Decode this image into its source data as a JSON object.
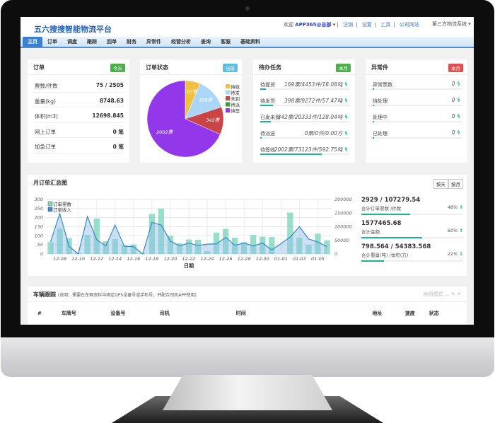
{
  "header": {
    "title": "五六搜搜智能物流平台",
    "welcome": "欢迎",
    "user": "APP365@总部",
    "links": [
      "注销",
      "设置",
      "工具",
      "公司网站"
    ],
    "system": "第三方物流系统"
  },
  "nav": [
    "主页",
    "订单",
    "调度",
    "跟踪",
    "回单",
    "财务",
    "异常件",
    "经营分析",
    "查询",
    "客服",
    "基础资料"
  ],
  "orders": {
    "title": "订单",
    "badge": "今天",
    "rows": [
      {
        "k": "票数/件数",
        "v": "75 / 2505"
      },
      {
        "k": "重量(kg)",
        "v": "8748.63"
      },
      {
        "k": "体积(m3)",
        "v": "12698.845"
      },
      {
        "k": "网上订单",
        "v": "0 笔"
      },
      {
        "k": "加急订单",
        "v": "0 笔"
      }
    ]
  },
  "status": {
    "title": "订单状态",
    "badge": "当前",
    "slices": [
      {
        "label": "待收",
        "value": 187,
        "text": "187票",
        "color": "#f0c040"
      },
      {
        "label": "待发",
        "value": 398,
        "text": "398票",
        "color": "#acd6f8"
      },
      {
        "label": "未到",
        "value": 342,
        "text": "342票",
        "color": "#c94545"
      },
      {
        "label": "待派",
        "value": 0,
        "text": "",
        "color": "#33a033"
      },
      {
        "label": "待签",
        "value": 2002,
        "text": "2002票",
        "color": "#9238ea"
      }
    ]
  },
  "tasks": {
    "title": "待办任务",
    "badge": "本月",
    "rows": [
      {
        "k": "待提货",
        "v": "169票/4453件/18.08吨",
        "pct": 6
      },
      {
        "k": "待发货",
        "v": "398票/9272件/57.47吨",
        "pct": 14
      },
      {
        "k": "已发未到",
        "v": "342票/20333件/128.04吨",
        "pct": 12
      },
      {
        "k": "待派送",
        "v": "0票/0件/0.00方",
        "pct": 0
      },
      {
        "k": "待签收",
        "v": "2002票/73123件/592.75吨",
        "pct": 69
      }
    ]
  },
  "exceptions": {
    "title": "异常件",
    "badge": "本月",
    "rows": [
      {
        "k": "异常票数",
        "v": "0",
        "pct": 0
      },
      {
        "k": "待处理",
        "v": "0",
        "pct": 0
      },
      {
        "k": "处理中",
        "v": "0",
        "pct": 0
      },
      {
        "k": "已处理",
        "v": "0",
        "pct": 0
      }
    ]
  },
  "monthly": {
    "title": "月订单汇总图",
    "btn_day": "按天",
    "btn_month": "按月",
    "stats": [
      {
        "n": "2929 / 107279.54",
        "l": "合计订单票数 /件数",
        "p": "48%",
        "pct": 48
      },
      {
        "n": "1577465.68",
        "l": "合计金额",
        "p": "60%",
        "pct": 60
      },
      {
        "n": "798.564 / 54383.568",
        "l": "合计重量(吨) /体积(方)",
        "p": "22%",
        "pct": 22
      }
    ]
  },
  "chart_data": {
    "type": "bar+line",
    "xlabel": "日期",
    "x": [
      "12-07",
      "12-08",
      "12-09",
      "12-10",
      "12-11",
      "12-12",
      "12-13",
      "12-14",
      "12-15",
      "12-16",
      "12-17",
      "12-18",
      "12-19",
      "12-20",
      "12-21",
      "12-22",
      "12-23",
      "12-24",
      "12-25",
      "12-26",
      "12-27",
      "12-28",
      "12-29",
      "12-30",
      "12-31",
      "01-01",
      "01-02",
      "01-03",
      "01-04",
      "01-05",
      "01-06"
    ],
    "tick_labels": [
      "12-08",
      "12-10",
      "12-12",
      "12-14",
      "12-16",
      "12-18",
      "12-20",
      "12-22",
      "12-24",
      "12-26",
      "12-28",
      "12-30",
      "01-01",
      "01-03",
      "01-05"
    ],
    "series": [
      {
        "name": "订单票数",
        "type": "bar",
        "axis": "left",
        "color": "#7fd6bd",
        "values": [
          65,
          140,
          88,
          5,
          105,
          195,
          70,
          82,
          48,
          52,
          3,
          220,
          250,
          100,
          58,
          80,
          78,
          15,
          118,
          138,
          90,
          65,
          105,
          95,
          93,
          0,
          228,
          90,
          50,
          112,
          75
        ]
      },
      {
        "name": "订单收入",
        "type": "area-line",
        "axis": "right",
        "color": "#3a87c4",
        "values": [
          45000,
          148000,
          28000,
          0,
          137000,
          52000,
          30000,
          106000,
          28000,
          27000,
          0,
          116000,
          106000,
          47000,
          30000,
          40000,
          31000,
          36000,
          37000,
          61000,
          32000,
          40000,
          29000,
          40000,
          15000,
          38000,
          62000,
          100000,
          55000,
          44000,
          27000
        ]
      }
    ],
    "ylim_left": [
      0,
      300
    ],
    "yticks_left": [
      0,
      50,
      100,
      150,
      200,
      250,
      300
    ],
    "ylim_right": [
      0,
      200000
    ],
    "yticks_right": [
      0,
      50000,
      100000,
      150000,
      200000
    ],
    "grid": true,
    "legend": "top-left"
  },
  "vehicle": {
    "title": "车辆跟踪",
    "note": "(说明：需要在车辆资料中绑定GPS设备号或手机号，并配合司机APP使用)",
    "map_mode": "地图模式",
    "columns": [
      "#",
      "车牌号",
      "设备号",
      "司机",
      "时间",
      "地址",
      "速度",
      "状态"
    ]
  }
}
